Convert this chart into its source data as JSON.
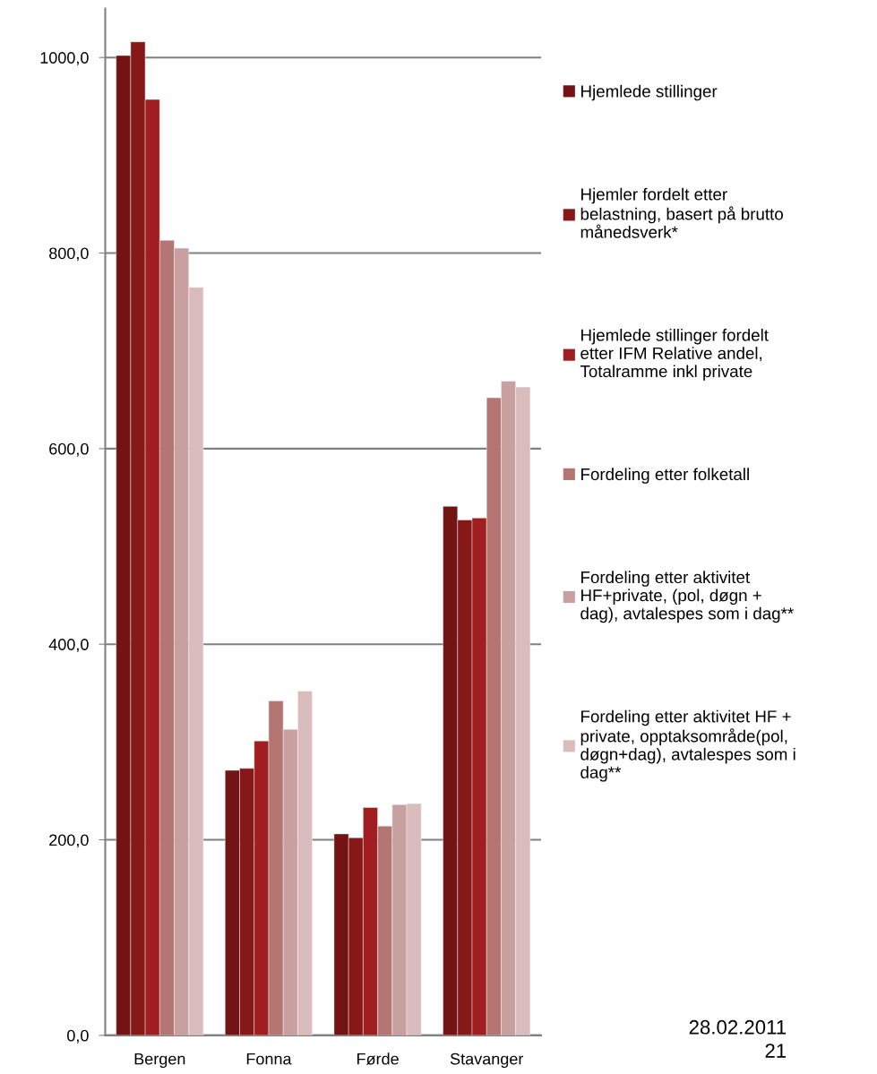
{
  "chart_data": {
    "type": "bar",
    "categories": [
      "Bergen",
      "Fonna",
      "Førde",
      "Stavanger"
    ],
    "series": [
      {
        "name": "Hjemlede stillinger",
        "color": "#721414",
        "values": [
          1002,
          271,
          206,
          541
        ]
      },
      {
        "name": "Hjemler fordelt etter\nbelastning, basert på brutto\nmånedsverk*",
        "color": "#861818",
        "values": [
          1016,
          273,
          202,
          527
        ]
      },
      {
        "name": "Hjemlede stillinger fordelt\netter IFM Relative andel,\nTotalramme inkl private",
        "color": "#a11e20",
        "values": [
          957,
          301,
          233,
          529
        ]
      },
      {
        "name": "Fordeling etter folketall",
        "color": "#b47573",
        "values": [
          813,
          342,
          214,
          652
        ]
      },
      {
        "name": "Fordeling etter aktivitet\nHF+private, (pol, døgn +\ndag), avtalespes som i dag**",
        "color": "#c9a0a0",
        "values": [
          805,
          313,
          236,
          669
        ]
      },
      {
        "name": "Fordeling etter aktivitet HF +\nprivate, opptaksområde(pol,\ndøgn+dag), avtalespes som i\ndag**",
        "color": "#dbbcbd",
        "values": [
          765,
          352,
          237,
          663
        ]
      }
    ],
    "ylim": [
      0,
      1050
    ],
    "yticks": [
      {
        "value": 0,
        "label": "0,0"
      },
      {
        "value": 200,
        "label": "200,0"
      },
      {
        "value": 400,
        "label": "400,0"
      },
      {
        "value": 600,
        "label": "600,0"
      },
      {
        "value": 800,
        "label": "800,0"
      },
      {
        "value": 1000,
        "label": "1000,0"
      }
    ],
    "grid": "y",
    "legend": "right",
    "annotations": [
      "28.02.2011",
      "21"
    ]
  }
}
